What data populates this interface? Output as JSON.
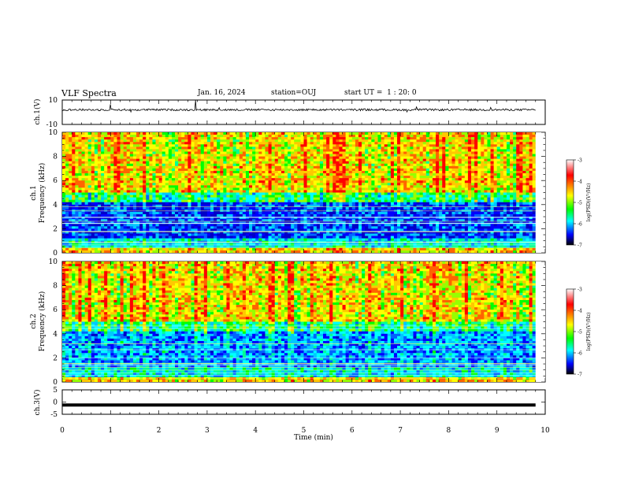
{
  "header": {
    "title": "VLF Spectra",
    "date": "Jan. 16, 2024",
    "station": "station=OUJ",
    "start": "start UT =  1 : 20: 0"
  },
  "chart_data": [
    {
      "type": "line",
      "ylabel": "ch.1(V)",
      "ylim": [
        -10,
        10
      ],
      "y_ticks": [
        "10",
        "-10"
      ],
      "xlim": [
        0,
        10
      ],
      "series_approx": "noisy waveform near 2 V with sparse spikes up to about 10 V and down to about -5 V"
    },
    {
      "type": "heatmap",
      "ylabel": "ch.1\nFrequency (kHz)",
      "ylim": [
        0,
        10
      ],
      "y_ticks": [
        "0",
        "2",
        "4",
        "6",
        "8",
        "10"
      ],
      "xlim": [
        0,
        10
      ],
      "colorbar": {
        "label": "log(PSD)(V²/Hz)",
        "range": [
          -7,
          -3
        ],
        "ticks": [
          "-3",
          "-4",
          "-5",
          "-6",
          "-7"
        ]
      }
    },
    {
      "type": "heatmap",
      "ylabel": "ch.2\nFrequency (kHz)",
      "ylim": [
        0,
        10
      ],
      "y_ticks": [
        "0",
        "2",
        "4",
        "6",
        "8",
        "10"
      ],
      "xlim": [
        0,
        10
      ],
      "colorbar": {
        "label": "log(PSD)(V²/Hz)",
        "range": [
          -7,
          -3
        ],
        "ticks": [
          "-3",
          "-4",
          "-5",
          "-6",
          "-7"
        ]
      }
    },
    {
      "type": "line",
      "ylabel": "ch.3(V)",
      "ylim": [
        -5,
        5
      ],
      "y_ticks": [
        "5",
        "0",
        "-5"
      ],
      "xlim": [
        0,
        10
      ],
      "series": [
        {
          "x": [
            0,
            9.8
          ],
          "y": [
            -1.2,
            -1.2
          ]
        }
      ]
    }
  ],
  "x_axis": {
    "label": "Time (min)",
    "ticks": [
      "0",
      "1",
      "2",
      "3",
      "4",
      "5",
      "6",
      "7",
      "8",
      "9",
      "10"
    ]
  },
  "colors": {
    "scale": [
      "#000000",
      "#0000ff",
      "#00ffff",
      "#00ff00",
      "#ffff00",
      "#ff0000",
      "#ffffff"
    ]
  }
}
